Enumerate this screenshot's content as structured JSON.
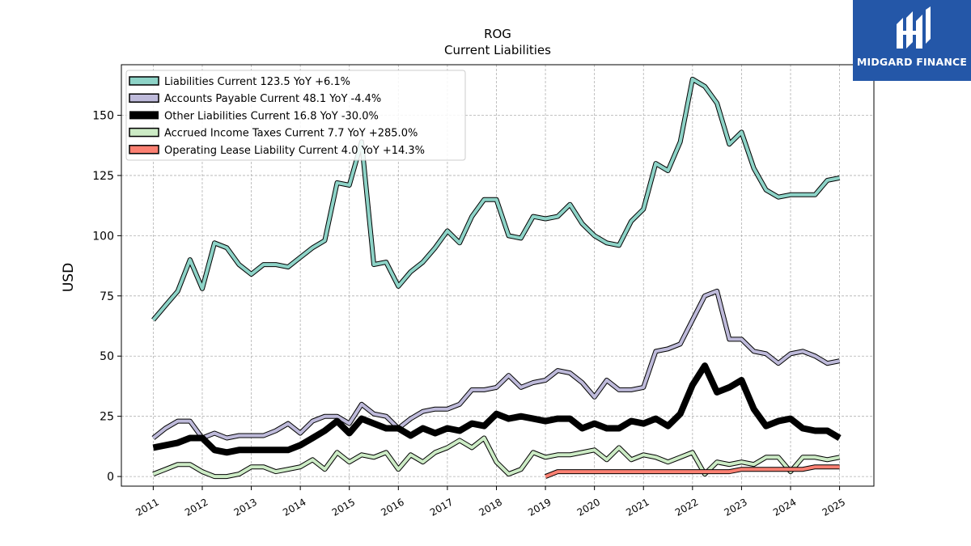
{
  "chart_data": {
    "type": "line",
    "title": "ROG",
    "subtitle": "Current  Liabilities",
    "ylabel": "USD",
    "xlabel": "",
    "xlim": [
      2010.35,
      2025.7
    ],
    "ylim": [
      -4,
      171
    ],
    "yticks": [
      0,
      25,
      50,
      75,
      100,
      125,
      150
    ],
    "xticks": [
      "2011",
      "2012",
      "2013",
      "2014",
      "2015",
      "2016",
      "2017",
      "2018",
      "2019",
      "2020",
      "2021",
      "2022",
      "2023",
      "2024",
      "2025"
    ],
    "grid": true,
    "legend_position": "top-left",
    "series": [
      {
        "name": "Liabilities Current  123.5 YoY +6.1%",
        "color": "#8dd3c7",
        "x": [
          2011.0,
          2011.25,
          2011.5,
          2011.75,
          2012.0,
          2012.25,
          2012.5,
          2012.75,
          2013.0,
          2013.25,
          2013.5,
          2013.75,
          2014.0,
          2014.25,
          2014.5,
          2014.75,
          2015.0,
          2015.25,
          2015.5,
          2015.75,
          2016.0,
          2016.25,
          2016.5,
          2016.75,
          2017.0,
          2017.25,
          2017.5,
          2017.75,
          2018.0,
          2018.25,
          2018.5,
          2018.75,
          2019.0,
          2019.25,
          2019.5,
          2019.75,
          2020.0,
          2020.25,
          2020.5,
          2020.75,
          2021.0,
          2021.25,
          2021.5,
          2021.75,
          2022.0,
          2022.25,
          2022.5,
          2022.75,
          2023.0,
          2023.25,
          2023.5,
          2023.75,
          2024.0,
          2024.25,
          2024.5,
          2024.75,
          2025.0
        ],
        "values": [
          65,
          71,
          77,
          90,
          78,
          97,
          95,
          88,
          84,
          88,
          88,
          87,
          91,
          95,
          98,
          122,
          121,
          139,
          88,
          89,
          79,
          85,
          89,
          95,
          102,
          97,
          108,
          115,
          115,
          100,
          99,
          108,
          107,
          108,
          113,
          105,
          100,
          97,
          96,
          106,
          111,
          130,
          127,
          139,
          165,
          162,
          155,
          138,
          143,
          128,
          119,
          116,
          117,
          117,
          117,
          123,
          124
        ]
      },
      {
        "name": "Accounts Payable Current  48.1 YoY -4.4%",
        "color": "#bebada",
        "x": [
          2011.0,
          2011.25,
          2011.5,
          2011.75,
          2012.0,
          2012.25,
          2012.5,
          2012.75,
          2013.0,
          2013.25,
          2013.5,
          2013.75,
          2014.0,
          2014.25,
          2014.5,
          2014.75,
          2015.0,
          2015.25,
          2015.5,
          2015.75,
          2016.0,
          2016.25,
          2016.5,
          2016.75,
          2017.0,
          2017.25,
          2017.5,
          2017.75,
          2018.0,
          2018.25,
          2018.5,
          2018.75,
          2019.0,
          2019.25,
          2019.5,
          2019.75,
          2020.0,
          2020.25,
          2020.5,
          2020.75,
          2021.0,
          2021.25,
          2021.5,
          2021.75,
          2022.0,
          2022.25,
          2022.5,
          2022.75,
          2023.0,
          2023.25,
          2023.5,
          2023.75,
          2024.0,
          2024.25,
          2024.5,
          2024.75,
          2025.0
        ],
        "values": [
          16,
          20,
          23,
          23,
          16,
          18,
          16,
          17,
          17,
          17,
          19,
          22,
          18,
          23,
          25,
          25,
          22,
          30,
          26,
          25,
          20,
          24,
          27,
          28,
          28,
          30,
          36,
          36,
          37,
          42,
          37,
          39,
          40,
          44,
          43,
          39,
          33,
          40,
          36,
          36,
          37,
          52,
          53,
          55,
          65,
          75,
          77,
          57,
          57,
          52,
          51,
          47,
          51,
          52,
          50,
          47,
          48
        ]
      },
      {
        "name": "Other Liabilities Current  16.8 YoY -30.0%",
        "color": "#000000",
        "x": [
          2011.0,
          2011.25,
          2011.5,
          2011.75,
          2012.0,
          2012.25,
          2012.5,
          2012.75,
          2013.0,
          2013.25,
          2013.5,
          2013.75,
          2014.0,
          2014.25,
          2014.5,
          2014.75,
          2015.0,
          2015.25,
          2015.5,
          2015.75,
          2016.0,
          2016.25,
          2016.5,
          2016.75,
          2017.0,
          2017.25,
          2017.5,
          2017.75,
          2018.0,
          2018.25,
          2018.5,
          2018.75,
          2019.0,
          2019.25,
          2019.5,
          2019.75,
          2020.0,
          2020.25,
          2020.5,
          2020.75,
          2021.0,
          2021.25,
          2021.5,
          2021.75,
          2022.0,
          2022.25,
          2022.5,
          2022.75,
          2023.0,
          2023.25,
          2023.5,
          2023.75,
          2024.0,
          2024.25,
          2024.5,
          2024.75,
          2025.0
        ],
        "values": [
          12,
          13,
          14,
          16,
          16,
          11,
          10,
          11,
          11,
          11,
          11,
          11,
          13,
          16,
          19,
          23,
          18,
          24,
          22,
          20,
          20,
          17,
          20,
          18,
          20,
          19,
          22,
          21,
          26,
          24,
          25,
          24,
          23,
          24,
          24,
          20,
          22,
          20,
          20,
          23,
          22,
          24,
          21,
          26,
          38,
          46,
          35,
          37,
          40,
          28,
          21,
          23,
          24,
          20,
          19,
          19,
          16
        ]
      },
      {
        "name": "Accrued Income Taxes Current  7.7 YoY +285.0%",
        "color": "#ccebc5",
        "x": [
          2011.0,
          2011.25,
          2011.5,
          2011.75,
          2012.0,
          2012.25,
          2012.5,
          2012.75,
          2013.0,
          2013.25,
          2013.5,
          2013.75,
          2014.0,
          2014.25,
          2014.5,
          2014.75,
          2015.0,
          2015.25,
          2015.5,
          2015.75,
          2016.0,
          2016.25,
          2016.5,
          2016.75,
          2017.0,
          2017.25,
          2017.5,
          2017.75,
          2018.0,
          2018.25,
          2018.5,
          2018.75,
          2019.0,
          2019.25,
          2019.5,
          2019.75,
          2020.0,
          2020.25,
          2020.5,
          2020.75,
          2021.0,
          2021.25,
          2021.5,
          2021.75,
          2022.0,
          2022.25,
          2022.5,
          2022.75,
          2023.0,
          2023.25,
          2023.5,
          2023.75,
          2024.0,
          2024.25,
          2024.5,
          2024.75,
          2025.0
        ],
        "values": [
          1,
          3,
          5,
          5,
          2,
          0,
          0,
          1,
          4,
          4,
          2,
          3,
          4,
          7,
          3,
          10,
          6,
          9,
          8,
          10,
          3,
          9,
          6,
          10,
          12,
          15,
          12,
          16,
          6,
          1,
          3,
          10,
          8,
          9,
          9,
          10,
          11,
          7,
          12,
          7,
          9,
          8,
          6,
          8,
          10,
          1,
          6,
          5,
          6,
          5,
          8,
          8,
          2,
          8,
          8,
          7,
          8
        ]
      },
      {
        "name": "Operating Lease Liability Current  4.0 YoY +14.3%",
        "color": "#fb8072",
        "x": [
          2019.0,
          2019.25,
          2019.5,
          2019.75,
          2020.0,
          2020.25,
          2020.5,
          2020.75,
          2021.0,
          2021.25,
          2021.5,
          2021.75,
          2022.0,
          2022.25,
          2022.5,
          2022.75,
          2023.0,
          2023.25,
          2023.5,
          2023.75,
          2024.0,
          2024.25,
          2024.5,
          2024.75,
          2025.0
        ],
        "values": [
          0,
          2,
          2,
          2,
          2,
          2,
          2,
          2,
          2,
          2,
          2,
          2,
          2,
          2,
          2,
          2,
          3,
          3,
          3,
          3,
          3,
          3,
          4,
          4,
          4
        ]
      }
    ]
  },
  "branding": {
    "logo_text": "MIDGARD FINANCE",
    "logo_bg": "#2457a8"
  }
}
